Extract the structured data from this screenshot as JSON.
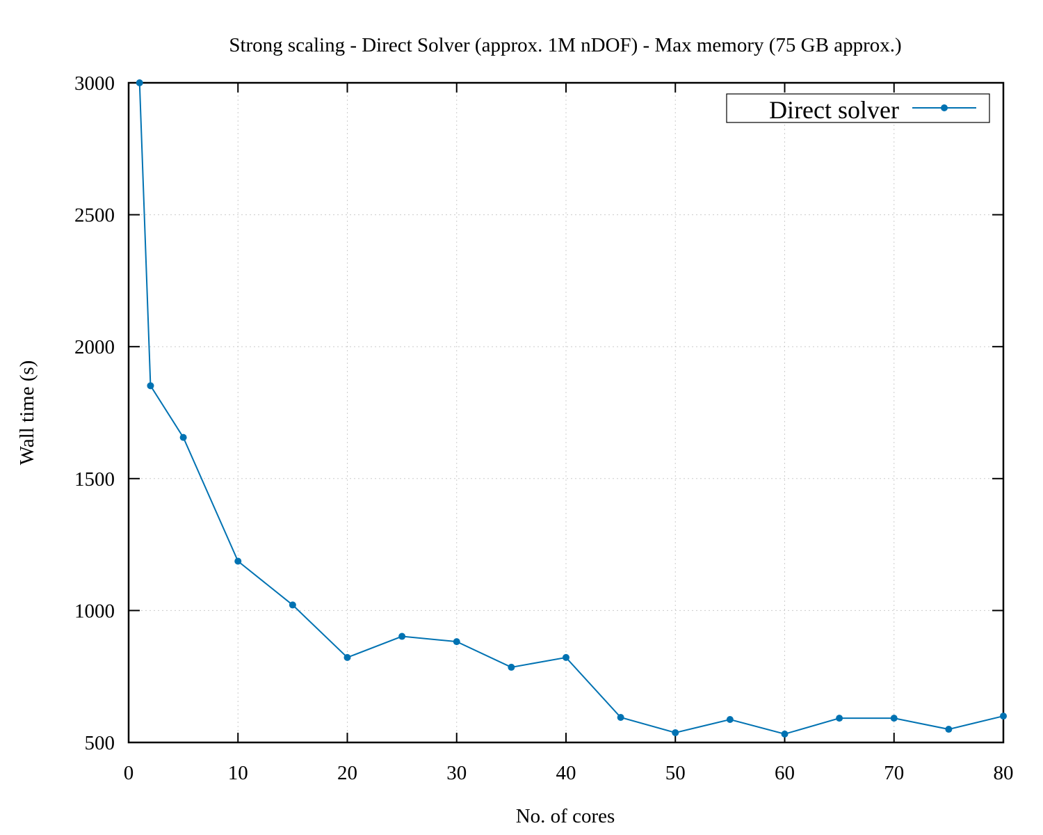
{
  "chart_data": {
    "type": "line",
    "title": "Strong scaling - Direct Solver (approx. 1M nDOF) - Max memory (75 GB approx.)",
    "xlabel": "No. of cores",
    "ylabel": "Wall time (s)",
    "xlim": [
      0,
      80
    ],
    "ylim": [
      500,
      3000
    ],
    "xticks": [
      "0",
      "10",
      "20",
      "30",
      "40",
      "50",
      "60",
      "70",
      "80"
    ],
    "yticks": [
      "500",
      "1000",
      "1500",
      "2000",
      "2500",
      "3000"
    ],
    "grid": true,
    "legend_position": "top-right",
    "series": [
      {
        "name": "Direct solver",
        "color": "#0072b2",
        "x": [
          1,
          2,
          5,
          10,
          15,
          20,
          25,
          30,
          35,
          40,
          45,
          50,
          55,
          60,
          65,
          70,
          75,
          80
        ],
        "y": [
          3000,
          1852,
          1656,
          1187,
          1021,
          822,
          902,
          882,
          785,
          822,
          595,
          537,
          587,
          532,
          592,
          592,
          550,
          600
        ]
      }
    ]
  }
}
